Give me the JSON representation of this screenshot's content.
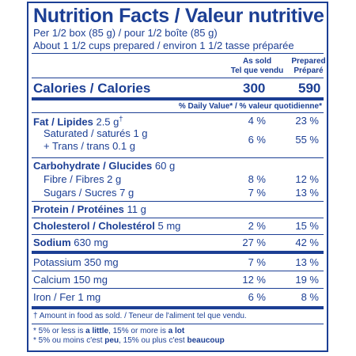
{
  "title": "Nutrition Facts / Valeur nutritive",
  "serving_1": "Per 1/2 box (85 g) / pour 1/2 boîte (85 g)",
  "serving_2": "About 1 1/2 cups prepared / environ 1 1/2 tasse préparée",
  "columns": {
    "as_sold_en": "As sold",
    "as_sold_fr": "Tel que vendu",
    "prepared_en": "Prepared",
    "prepared_fr": "Préparé"
  },
  "calories": {
    "label": "Calories / Calories",
    "as_sold": "300",
    "prepared": "590"
  },
  "dv_header": "% Daily Value* / % valeur quotidienne*",
  "fat": {
    "label": "Fat / Lipides",
    "amount": "2.5 g",
    "mark": "†",
    "as_sold": "4 %",
    "prepared": "23 %"
  },
  "saturated": {
    "label": "Saturated / saturés 1 g",
    "as_sold": "6 %",
    "prepared": "55 %"
  },
  "trans": {
    "label": "+ Trans / trans 0.1 g"
  },
  "carb": {
    "label": "Carbohydrate / Glucides",
    "amount": "60 g"
  },
  "fibre": {
    "label": "Fibre / Fibres 2 g",
    "as_sold": "8 %",
    "prepared": "12 %"
  },
  "sugars": {
    "label": "Sugars / Sucres 7 g",
    "as_sold": "7 %",
    "prepared": "13 %"
  },
  "protein": {
    "label": "Protein / Protéines",
    "amount": "11 g"
  },
  "cholesterol": {
    "label": "Cholesterol / Cholestérol",
    "amount": "5 mg",
    "as_sold": "2 %",
    "prepared": "15 %"
  },
  "sodium": {
    "label": "Sodium",
    "amount": "630 mg",
    "as_sold": "27 %",
    "prepared": "42 %"
  },
  "potassium": {
    "label": "Potassium 350 mg",
    "as_sold": "7 %",
    "prepared": "13 %"
  },
  "calcium": {
    "label": "Calcium 150 mg",
    "as_sold": "12 %",
    "prepared": "19 %"
  },
  "iron": {
    "label": "Iron / Fer 1 mg",
    "as_sold": "6 %",
    "prepared": "8 %"
  },
  "footnote_dagger": "† Amount in food as sold. / Teneur de l'aliment tel que vendu.",
  "footnote_en": {
    "a": "* 5% or less is ",
    "little": "a little",
    "b": ", 15% or more is ",
    "lot": "a lot"
  },
  "footnote_fr": {
    "a": "* 5% ou moins c'est ",
    "peu": "peu",
    "b": ", 15% ou plus c'est ",
    "beaucoup": "beaucoup"
  },
  "colors": {
    "label_blue": "#1c3f94",
    "background": "#ffffff"
  }
}
